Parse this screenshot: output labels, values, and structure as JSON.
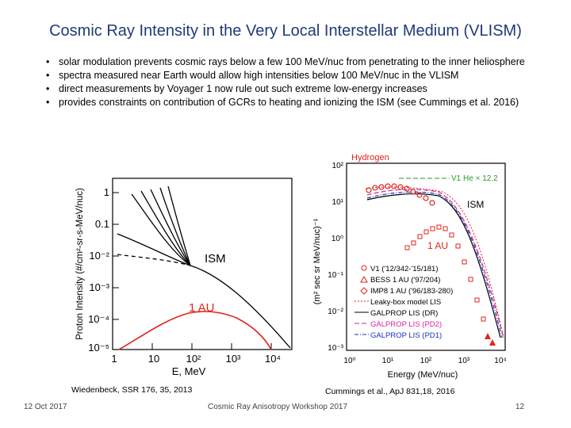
{
  "slide": {
    "title": "Cosmic Ray Intensity in the Very Local Interstellar Medium (VLISM)",
    "bullets": [
      "solar modulation prevents cosmic rays below a few 100 MeV/nuc from penetrating to the inner heliosphere",
      "spectra measured near Earth would allow high intensities below 100 MeV/nuc in the VLISM",
      "direct measurements by Voyager 1 now rule out such extreme low-energy increases",
      "provides constraints on contribution of GCRs to heating and ionizing the ISM (see Cummings et al. 2016)"
    ],
    "left_caption": "Wiedenbeck, SSR 176, 35, 2013",
    "right_caption": "Cummings et al., ApJ 831,18, 2016",
    "footer": {
      "date": "12 Oct 2017",
      "center": "Cosmic Ray Anisotropy Workshop 2017",
      "page": "12"
    }
  },
  "colors": {
    "title": "#1f3a7a",
    "red": "#e0241b",
    "blue": "#1a2fbf",
    "magenta": "#d6269b",
    "green": "#2a9a2a"
  },
  "left_plot": {
    "ylabel": "Proton Intensity (#/cm²-sr-s-MeV/nuc)",
    "xlabel": "E, MeV",
    "x_ticks": [
      "1",
      "10",
      "10²",
      "10³",
      "10⁴"
    ],
    "y_ticks": [
      "1",
      "0.1",
      "10⁻²",
      "10⁻³",
      "10⁻⁴",
      "10⁻⁵"
    ],
    "label_ism": "ISM",
    "label_1au": "1 AU"
  },
  "right_plot": {
    "title": "Hydrogen",
    "ylabel": "(m² sec sr MeV/nuc)⁻¹",
    "xlabel": "Energy (MeV/nuc)",
    "x_ticks": [
      "10⁰",
      "10¹",
      "10²",
      "10³",
      "10⁴"
    ],
    "y_ticks": [
      "10²",
      "10¹",
      "10⁰",
      "10⁻¹",
      "10⁻²",
      "10⁻³"
    ],
    "he_label": "V1 He × 12.2",
    "label_ism": "ISM",
    "label_1au": "1 AU",
    "legend": [
      "V1 ('12/342-'15/181)",
      "BESS 1 AU ('97/204)",
      "IMP8 1 AU ('96/183-280)",
      "Leaky-box model LIS",
      "GALPROP LIS (DR)",
      "GALPROP LIS (PD2)",
      "GALPROP LIS (PD1)"
    ]
  }
}
